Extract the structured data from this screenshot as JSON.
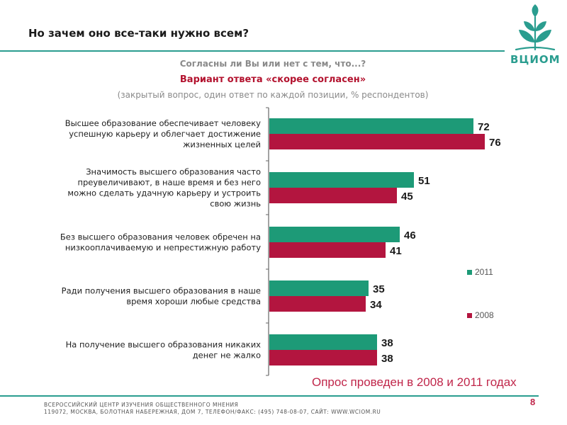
{
  "header": {
    "title": "Но зачем оно все-таки нужно всем?",
    "logo_text": "ВЦИОМ"
  },
  "subtitle": {
    "line1": "Согласны ли Вы или нет с тем, что...?",
    "line2": "Вариант ответа «скорее согласен»",
    "line3": "(закрытый вопрос, один ответ по каждой позиции, % респондентов)"
  },
  "chart_data": {
    "type": "bar",
    "orientation": "horizontal",
    "categories": [
      [
        "Высшее образование обеспечивает человеку",
        "успешную карьеру и облегчает достижение",
        "жизненных целей"
      ],
      [
        "Значимость высшего образования часто",
        "преувеличивают, в наше время и без него",
        "можно сделать удачную карьеру и устроить",
        "свою жизнь"
      ],
      [
        "Без высшего образования человек обречен на",
        "низкооплачиваемую и непрестижную работу"
      ],
      [
        "Ради получения высшего образования в наше",
        "время хороши любые средства"
      ],
      [
        "На получение высшего образования никаких",
        "денег не жалко"
      ]
    ],
    "series": [
      {
        "name": "2011",
        "color": "#1d9a77",
        "values": [
          72,
          51,
          46,
          35,
          38
        ]
      },
      {
        "name": "2008",
        "color": "#b3153f",
        "values": [
          76,
          45,
          41,
          34,
          38
        ]
      }
    ],
    "xlim": [
      0,
      80
    ],
    "grid": false,
    "legend_position": "right"
  },
  "note": "Опрос проведен в 2008 и 2011 годах",
  "footer": {
    "line1": "ВСЕРОССИЙСКИЙ ЦЕНТР ИЗУЧЕНИЯ ОБЩЕСТВЕННОГО МНЕНИЯ",
    "line2": "119072, МОСКВА, БОЛОТНАЯ НАБЕРЕЖНАЯ, ДОМ 7, ТЕЛЕФОН/ФАКС: (495) 748-08-07, САЙТ: WWW.WCIOM.RU"
  },
  "page_number": "8"
}
